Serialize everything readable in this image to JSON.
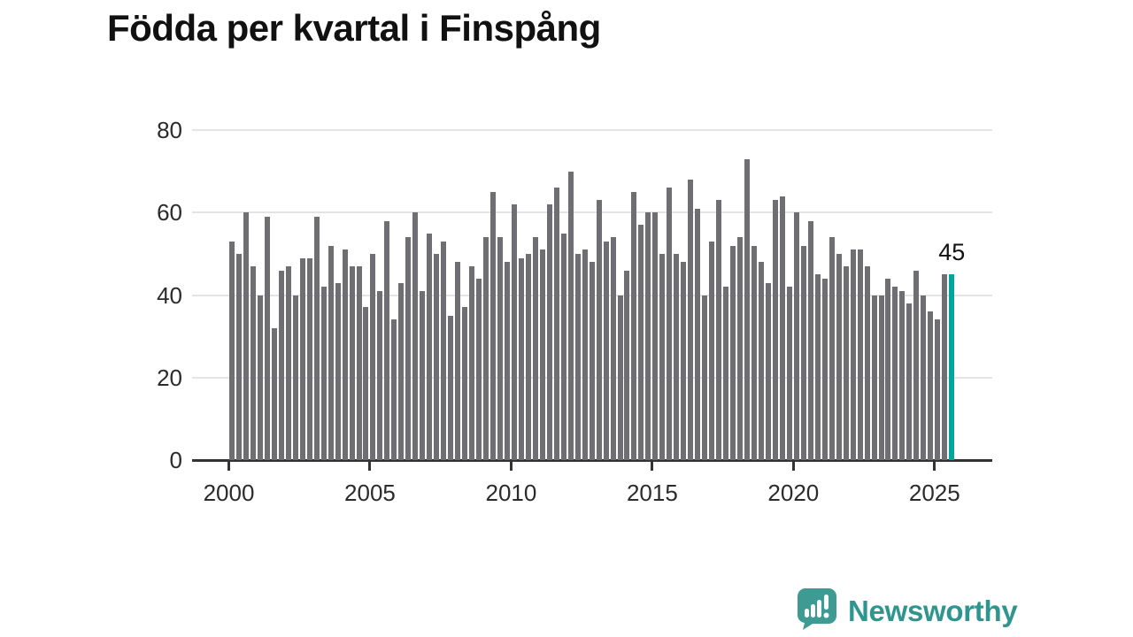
{
  "title": "Födda per kvartal i Finspång",
  "annotation": {
    "label": "45"
  },
  "branding": {
    "logo_text": "Newsworthy",
    "logo_icon": "bar-chart-speech-bubble-icon"
  },
  "colors": {
    "bar": "#6f6f73",
    "highlight": "#00a59c",
    "grid": "#e4e4e4",
    "axis": "#333333",
    "text": "#2b2b2b",
    "logo_bubble": "#3d9b93",
    "logo_text": "#2e968e"
  },
  "chart_data": {
    "type": "bar",
    "title": "Födda per kvartal i Finspång",
    "xlabel": "",
    "ylabel": "",
    "ylim": [
      0,
      80
    ],
    "yticks": [
      0,
      20,
      40,
      60,
      80
    ],
    "xticks": [
      2000,
      2005,
      2010,
      2015,
      2020,
      2025
    ],
    "grid": true,
    "legend": "none",
    "highlight_index": 102,
    "highlight_label": "45",
    "categories": [
      "2000 Q1",
      "2000 Q2",
      "2000 Q3",
      "2000 Q4",
      "2001 Q1",
      "2001 Q2",
      "2001 Q3",
      "2001 Q4",
      "2002 Q1",
      "2002 Q2",
      "2002 Q3",
      "2002 Q4",
      "2003 Q1",
      "2003 Q2",
      "2003 Q3",
      "2003 Q4",
      "2004 Q1",
      "2004 Q2",
      "2004 Q3",
      "2004 Q4",
      "2005 Q1",
      "2005 Q2",
      "2005 Q3",
      "2005 Q4",
      "2006 Q1",
      "2006 Q2",
      "2006 Q3",
      "2006 Q4",
      "2007 Q1",
      "2007 Q2",
      "2007 Q3",
      "2007 Q4",
      "2008 Q1",
      "2008 Q2",
      "2008 Q3",
      "2008 Q4",
      "2009 Q1",
      "2009 Q2",
      "2009 Q3",
      "2009 Q4",
      "2010 Q1",
      "2010 Q2",
      "2010 Q3",
      "2010 Q4",
      "2011 Q1",
      "2011 Q2",
      "2011 Q3",
      "2011 Q4",
      "2012 Q1",
      "2012 Q2",
      "2012 Q3",
      "2012 Q4",
      "2013 Q1",
      "2013 Q2",
      "2013 Q3",
      "2013 Q4",
      "2014 Q1",
      "2014 Q2",
      "2014 Q3",
      "2014 Q4",
      "2015 Q1",
      "2015 Q2",
      "2015 Q3",
      "2015 Q4",
      "2016 Q1",
      "2016 Q2",
      "2016 Q3",
      "2016 Q4",
      "2017 Q1",
      "2017 Q2",
      "2017 Q3",
      "2017 Q4",
      "2018 Q1",
      "2018 Q2",
      "2018 Q3",
      "2018 Q4",
      "2019 Q1",
      "2019 Q2",
      "2019 Q3",
      "2019 Q4",
      "2020 Q1",
      "2020 Q2",
      "2020 Q3",
      "2020 Q4",
      "2021 Q1",
      "2021 Q2",
      "2021 Q3",
      "2021 Q4",
      "2022 Q1",
      "2022 Q2",
      "2022 Q3",
      "2022 Q4",
      "2023 Q1",
      "2023 Q2",
      "2023 Q3",
      "2023 Q4",
      "2024 Q1",
      "2024 Q2",
      "2024 Q3",
      "2024 Q4",
      "2025 Q1",
      "2025 Q2",
      "2025 Q3"
    ],
    "values": [
      53,
      50,
      60,
      47,
      40,
      59,
      32,
      46,
      47,
      40,
      49,
      49,
      59,
      42,
      52,
      43,
      51,
      47,
      47,
      37,
      50,
      41,
      58,
      34,
      43,
      54,
      60,
      41,
      55,
      50,
      53,
      35,
      48,
      37,
      47,
      44,
      54,
      65,
      54,
      48,
      62,
      49,
      50,
      54,
      51,
      62,
      66,
      55,
      70,
      50,
      51,
      48,
      63,
      53,
      54,
      40,
      46,
      65,
      57,
      60,
      60,
      50,
      66,
      50,
      48,
      68,
      61,
      40,
      53,
      63,
      42,
      52,
      54,
      73,
      52,
      48,
      43,
      63,
      64,
      42,
      60,
      52,
      58,
      45,
      44,
      54,
      50,
      47,
      51,
      51,
      47,
      40,
      40,
      44,
      42,
      41,
      38,
      46,
      40,
      36,
      34,
      45,
      45
    ]
  }
}
